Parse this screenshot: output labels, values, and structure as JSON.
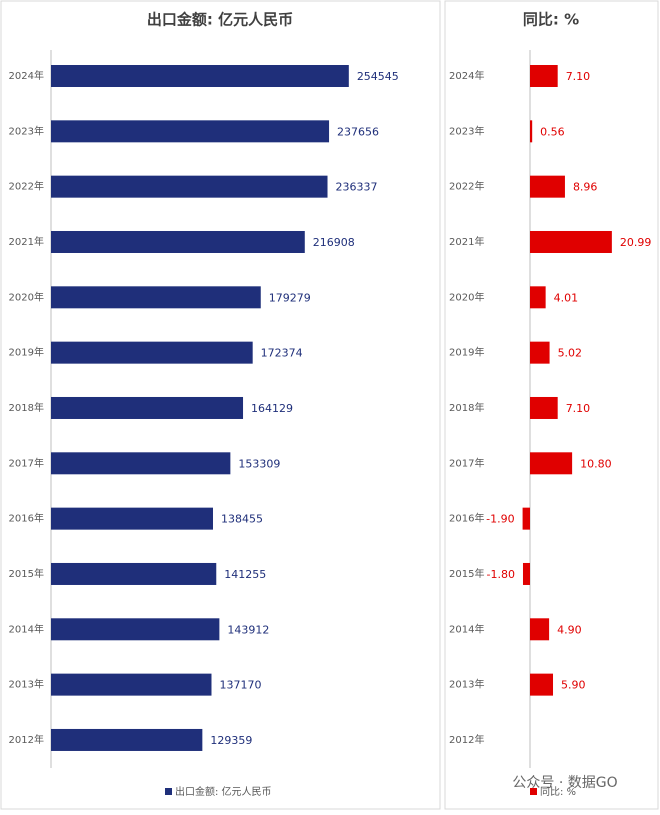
{
  "chart_data": [
    {
      "type": "bar",
      "orientation": "horizontal",
      "title": "出口金额: 亿元人民币",
      "categories": [
        "2024年",
        "2023年",
        "2022年",
        "2021年",
        "2020年",
        "2019年",
        "2018年",
        "2017年",
        "2016年",
        "2015年",
        "2014年",
        "2013年",
        "2012年"
      ],
      "series": [
        {
          "name": "出口金额: 亿元人民币",
          "color": "#1f2f7a",
          "values": [
            254545,
            237656,
            236337,
            216908,
            179279,
            172374,
            164129,
            153309,
            138455,
            141255,
            143912,
            137170,
            129359
          ]
        }
      ],
      "xlim": [
        0,
        300000
      ]
    },
    {
      "type": "bar",
      "orientation": "horizontal",
      "title": "同比: %",
      "categories": [
        "2024年",
        "2023年",
        "2022年",
        "2021年",
        "2020年",
        "2019年",
        "2018年",
        "2017年",
        "2016年",
        "2015年",
        "2014年",
        "2013年",
        "2012年"
      ],
      "series": [
        {
          "name": "同比: %",
          "color": "#e00000",
          "values": [
            7.1,
            0.56,
            8.96,
            20.99,
            4.01,
            5.02,
            7.1,
            10.8,
            -1.9,
            -1.8,
            4.9,
            5.9,
            null
          ],
          "value_labels": [
            "7.10",
            "0.56",
            "8.96",
            "20.99",
            "4.01",
            "5.02",
            "7.10",
            "10.80",
            "-1.90",
            "-1.80",
            "4.90",
            "5.90",
            null
          ]
        }
      ],
      "xlim": [
        -20,
        30
      ]
    }
  ],
  "watermark": "公众号 · 数据GO"
}
